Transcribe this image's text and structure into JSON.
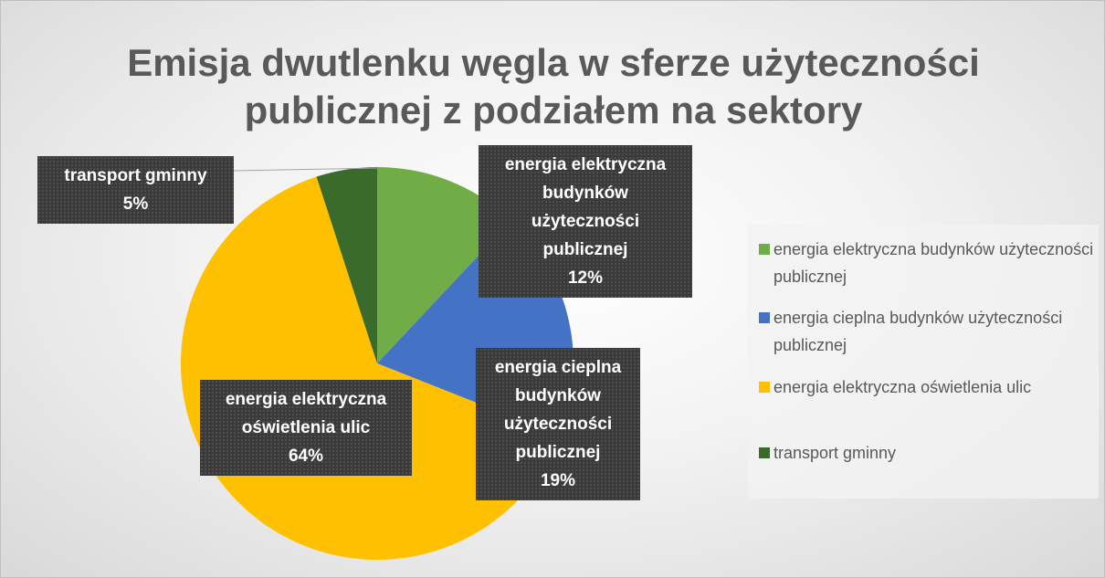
{
  "chart_data": {
    "type": "pie",
    "title": "Emisja dwutlenku węgla w sferze użyteczności publicznej z podziałem na sektory",
    "categories": [
      "energia elektryczna budynków użyteczności publicznej",
      "energia cieplna budynków użyteczności publicznej",
      "energia elektryczna oświetlenia ulic",
      "transport gminny"
    ],
    "values": [
      12,
      19,
      64,
      5
    ],
    "value_labels": [
      "12%",
      "19%",
      "64%",
      "5%"
    ],
    "colors": [
      "#70ad47",
      "#4472c4",
      "#ffc000",
      "#3b6b2a"
    ],
    "legend": "right"
  }
}
